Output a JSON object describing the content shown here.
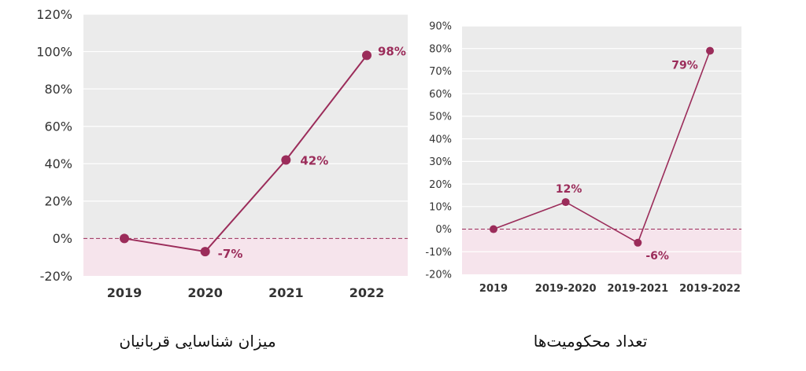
{
  "chart_data": [
    {
      "type": "line",
      "categories": [
        "2019",
        "2020",
        "2021",
        "2022"
      ],
      "series": [
        {
          "values": [
            0,
            -7,
            42,
            98
          ]
        }
      ],
      "data_labels": [
        "",
        "-7%",
        "42%",
        "98%"
      ],
      "ylim": [
        -20,
        120
      ],
      "yticks": [
        "-20%",
        "0%",
        "20%",
        "40%",
        "60%",
        "80%",
        "100%",
        "120%"
      ],
      "grid": true,
      "caption": "میزان شناسایی قربانیان"
    },
    {
      "type": "line",
      "categories": [
        "2019",
        "2019-2020",
        "2019-2021",
        "2019-2022"
      ],
      "series": [
        {
          "values": [
            0,
            12,
            -6,
            79
          ]
        }
      ],
      "data_labels": [
        "",
        "12%",
        "-6%",
        "79%"
      ],
      "ylim": [
        -20,
        90
      ],
      "yticks": [
        "-20%",
        "-10%",
        "0%",
        "10%",
        "20%",
        "30%",
        "40%",
        "50%",
        "60%",
        "70%",
        "80%",
        "90%"
      ],
      "grid": true,
      "caption": "تعداد محکومیت‌ها"
    }
  ],
  "colors": {
    "line": "#9b2c5a",
    "plot_bg": "#ebebeb",
    "negative_bg": "#f6e4ec",
    "grid": "#ffffff",
    "zero_line": "#9b2c5a",
    "label": "#9b2c5a"
  }
}
